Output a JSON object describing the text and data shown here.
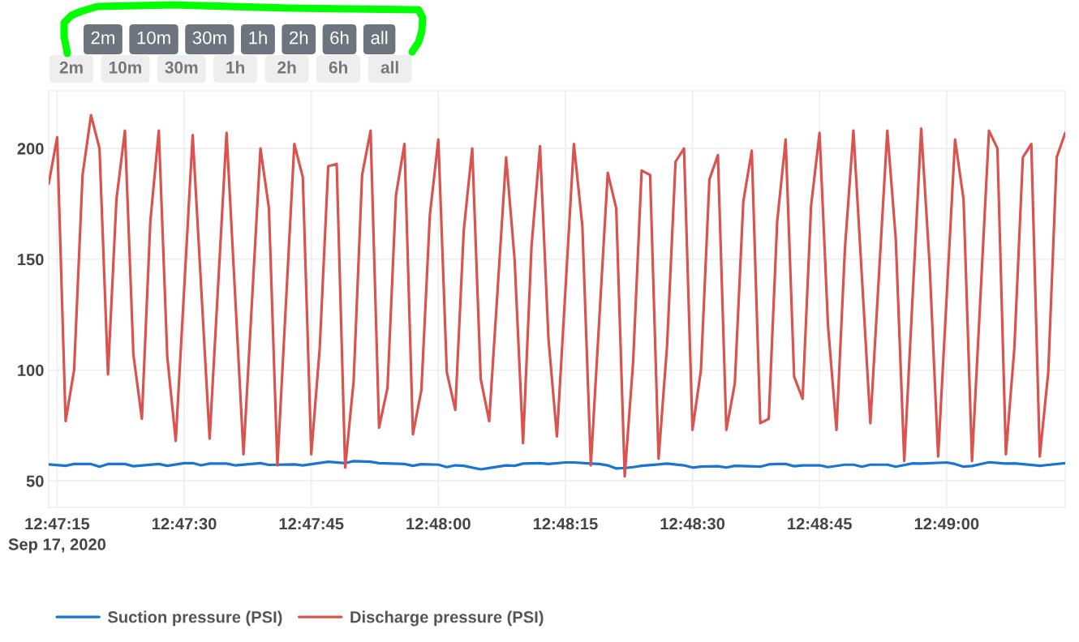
{
  "chart_data": {
    "type": "line",
    "annotations": [
      "2m",
      "10m",
      "30m",
      "1h",
      "2h",
      "6h",
      "all",
      "2m",
      "10m",
      "30m",
      "1h",
      "2h",
      "6h",
      "all"
    ],
    "xlim": [
      "2020-09-17T12:47:14",
      "2020-09-17T12:49:14"
    ],
    "xticks": [
      {
        "value": "2020-09-17T12:47:15",
        "label": "12:47:15\nSep 17, 2020"
      },
      {
        "value": "2020-09-17T12:47:30",
        "label": "12:47:30"
      },
      {
        "value": "2020-09-17T12:47:45",
        "label": "12:47:45"
      },
      {
        "value": "2020-09-17T12:48:00",
        "label": "12:48:00"
      },
      {
        "value": "2020-09-17T12:48:15",
        "label": "12:48:15"
      },
      {
        "value": "2020-09-17T12:48:30",
        "label": "12:48:30"
      },
      {
        "value": "2020-09-17T12:48:45",
        "label": "12:48:45"
      },
      {
        "value": "2020-09-17T12:49:00",
        "label": "12:49:00"
      }
    ],
    "ylim": [
      38,
      226
    ],
    "yticks": [
      50,
      100,
      150,
      200
    ],
    "grid": true,
    "legend": "bottom",
    "series": [
      {
        "name": "Suction pressure (PSI)",
        "color": "#1a75d2",
        "x": [
          "2020-09-17T12:47:14",
          "2020-09-17T12:47:16",
          "2020-09-17T12:47:17",
          "2020-09-17T12:47:19",
          "2020-09-17T12:47:20",
          "2020-09-17T12:47:21",
          "2020-09-17T12:47:23",
          "2020-09-17T12:47:24",
          "2020-09-17T12:47:27",
          "2020-09-17T12:47:28",
          "2020-09-17T12:47:30",
          "2020-09-17T12:47:31",
          "2020-09-17T12:47:32",
          "2020-09-17T12:47:33",
          "2020-09-17T12:47:35",
          "2020-09-17T12:47:36",
          "2020-09-17T12:47:39",
          "2020-09-17T12:47:40",
          "2020-09-17T12:47:43",
          "2020-09-17T12:47:44",
          "2020-09-17T12:47:47",
          "2020-09-17T12:47:49",
          "2020-09-17T12:47:50",
          "2020-09-17T12:47:52",
          "2020-09-17T12:47:53",
          "2020-09-17T12:47:56",
          "2020-09-17T12:47:57",
          "2020-09-17T12:47:58",
          "2020-09-17T12:48:00",
          "2020-09-17T12:48:01",
          "2020-09-17T12:48:02",
          "2020-09-17T12:48:03",
          "2020-09-17T12:48:05",
          "2020-09-17T12:48:06",
          "2020-09-17T12:48:08",
          "2020-09-17T12:48:09",
          "2020-09-17T12:48:10",
          "2020-09-17T12:48:12",
          "2020-09-17T12:48:13",
          "2020-09-17T12:48:15",
          "2020-09-17T12:48:16",
          "2020-09-17T12:48:18",
          "2020-09-17T12:48:19",
          "2020-09-17T12:48:20",
          "2020-09-17T12:48:21",
          "2020-09-17T12:48:22",
          "2020-09-17T12:48:23",
          "2020-09-17T12:48:24",
          "2020-09-17T12:48:26",
          "2020-09-17T12:48:27",
          "2020-09-17T12:48:29",
          "2020-09-17T12:48:30",
          "2020-09-17T12:48:31",
          "2020-09-17T12:48:33",
          "2020-09-17T12:48:34",
          "2020-09-17T12:48:35",
          "2020-09-17T12:48:38",
          "2020-09-17T12:48:39",
          "2020-09-17T12:48:40",
          "2020-09-17T12:48:41",
          "2020-09-17T12:48:42",
          "2020-09-17T12:48:43",
          "2020-09-17T12:48:45",
          "2020-09-17T12:48:46",
          "2020-09-17T12:48:48",
          "2020-09-17T12:48:49",
          "2020-09-17T12:48:50",
          "2020-09-17T12:48:51",
          "2020-09-17T12:48:53",
          "2020-09-17T12:48:54",
          "2020-09-17T12:48:56",
          "2020-09-17T12:48:57",
          "2020-09-17T12:49:00",
          "2020-09-17T12:49:01",
          "2020-09-17T12:49:02",
          "2020-09-17T12:49:03",
          "2020-09-17T12:49:05",
          "2020-09-17T12:49:07",
          "2020-09-17T12:49:08",
          "2020-09-17T12:49:11",
          "2020-09-17T12:49:12",
          "2020-09-17T12:49:14"
        ],
        "values": [
          57.4,
          56.8,
          57.6,
          57.6,
          56.4,
          57.6,
          57.6,
          56.6,
          57.6,
          56.8,
          58.0,
          58.0,
          57.0,
          57.8,
          57.8,
          57.0,
          58.0,
          57.2,
          57.4,
          57.0,
          58.6,
          58.0,
          58.9,
          58.6,
          58.0,
          57.6,
          56.8,
          57.5,
          57.3,
          56.2,
          57.0,
          56.8,
          55.2,
          55.8,
          57.0,
          56.8,
          57.8,
          58.0,
          57.6,
          58.3,
          58.3,
          57.8,
          57.6,
          57.0,
          55.6,
          55.8,
          56.2,
          56.8,
          57.4,
          57.8,
          57.0,
          56.0,
          56.4,
          56.6,
          56.0,
          56.8,
          56.4,
          57.4,
          57.6,
          57.6,
          56.6,
          57.0,
          57.0,
          56.2,
          57.3,
          57.3,
          56.4,
          57.3,
          57.3,
          56.4,
          57.9,
          57.8,
          58.3,
          57.6,
          56.4,
          56.7,
          58.4,
          57.8,
          57.9,
          56.8,
          57.2,
          58.0
        ]
      },
      {
        "name": "Discharge pressure (PSI)",
        "color": "#d9534f",
        "x": [
          "2020-09-17T12:47:14",
          "2020-09-17T12:47:15",
          "2020-09-17T12:47:16",
          "2020-09-17T12:47:17",
          "2020-09-17T12:47:18",
          "2020-09-17T12:47:19",
          "2020-09-17T12:47:20",
          "2020-09-17T12:47:21",
          "2020-09-17T12:47:22",
          "2020-09-17T12:47:23",
          "2020-09-17T12:47:24",
          "2020-09-17T12:47:25",
          "2020-09-17T12:47:26",
          "2020-09-17T12:47:27",
          "2020-09-17T12:47:28",
          "2020-09-17T12:47:29",
          "2020-09-17T12:47:31",
          "2020-09-17T12:47:33",
          "2020-09-17T12:47:35",
          "2020-09-17T12:47:37",
          "2020-09-17T12:47:39",
          "2020-09-17T12:47:40",
          "2020-09-17T12:47:41",
          "2020-09-17T12:47:43",
          "2020-09-17T12:47:44",
          "2020-09-17T12:47:45",
          "2020-09-17T12:47:46",
          "2020-09-17T12:47:47",
          "2020-09-17T12:47:48",
          "2020-09-17T12:47:49",
          "2020-09-17T12:47:50",
          "2020-09-17T12:47:51",
          "2020-09-17T12:47:52",
          "2020-09-17T12:47:53",
          "2020-09-17T12:47:54",
          "2020-09-17T12:47:55",
          "2020-09-17T12:47:56",
          "2020-09-17T12:47:57",
          "2020-09-17T12:47:58",
          "2020-09-17T12:47:59",
          "2020-09-17T12:48:00",
          "2020-09-17T12:48:01",
          "2020-09-17T12:48:02",
          "2020-09-17T12:48:03",
          "2020-09-17T12:48:04",
          "2020-09-17T12:48:05",
          "2020-09-17T12:48:06",
          "2020-09-17T12:48:08",
          "2020-09-17T12:48:09",
          "2020-09-17T12:48:10",
          "2020-09-17T12:48:11",
          "2020-09-17T12:48:12",
          "2020-09-17T12:48:13",
          "2020-09-17T12:48:14",
          "2020-09-17T12:48:16",
          "2020-09-17T12:48:17",
          "2020-09-17T12:48:18",
          "2020-09-17T12:48:20",
          "2020-09-17T12:48:21",
          "2020-09-17T12:48:22",
          "2020-09-17T12:48:23",
          "2020-09-17T12:48:24",
          "2020-09-17T12:48:25",
          "2020-09-17T12:48:26",
          "2020-09-17T12:48:27",
          "2020-09-17T12:48:28",
          "2020-09-17T12:48:29",
          "2020-09-17T12:48:30",
          "2020-09-17T12:48:31",
          "2020-09-17T12:48:32",
          "2020-09-17T12:48:33",
          "2020-09-17T12:48:34",
          "2020-09-17T12:48:35",
          "2020-09-17T12:48:36",
          "2020-09-17T12:48:37",
          "2020-09-17T12:48:38",
          "2020-09-17T12:48:39",
          "2020-09-17T12:48:40",
          "2020-09-17T12:48:41",
          "2020-09-17T12:48:42",
          "2020-09-17T12:48:43",
          "2020-09-17T12:48:44",
          "2020-09-17T12:48:45",
          "2020-09-17T12:48:46",
          "2020-09-17T12:48:47",
          "2020-09-17T12:48:48",
          "2020-09-17T12:48:49",
          "2020-09-17T12:48:51",
          "2020-09-17T12:48:53",
          "2020-09-17T12:48:54",
          "2020-09-17T12:48:55",
          "2020-09-17T12:48:57",
          "2020-09-17T12:48:58",
          "2020-09-17T12:48:59",
          "2020-09-17T12:49:01",
          "2020-09-17T12:49:02",
          "2020-09-17T12:49:03",
          "2020-09-17T12:49:05",
          "2020-09-17T12:49:06",
          "2020-09-17T12:49:07",
          "2020-09-17T12:49:08",
          "2020-09-17T12:49:09",
          "2020-09-17T12:49:10",
          "2020-09-17T12:49:11",
          "2020-09-17T12:49:12",
          "2020-09-17T12:49:13",
          "2020-09-17T12:49:14"
        ],
        "values": [
          184,
          205,
          77,
          100,
          188,
          215,
          200,
          98,
          177,
          208,
          107,
          78,
          167,
          208,
          106,
          68,
          206,
          69,
          207,
          62,
          200,
          173,
          57,
          202,
          187,
          62,
          110,
          192,
          193,
          56,
          95,
          188,
          208,
          74,
          92,
          179,
          202,
          71,
          91,
          170,
          204,
          99,
          82,
          163,
          200,
          96,
          77,
          196,
          150,
          67,
          156,
          201,
          114,
          70,
          202,
          165,
          57,
          189,
          173,
          52,
          104,
          190,
          188,
          60,
          111,
          194,
          200,
          73,
          100,
          186,
          197,
          73,
          94,
          176,
          199,
          76,
          78,
          167,
          204,
          97,
          87,
          174,
          207,
          120,
          73,
          155,
          208,
          76,
          208,
          159,
          59,
          209,
          147,
          61,
          204,
          177,
          59,
          208,
          200,
          62,
          110,
          196,
          202,
          61,
          99,
          196,
          207
        ]
      }
    ]
  }
}
